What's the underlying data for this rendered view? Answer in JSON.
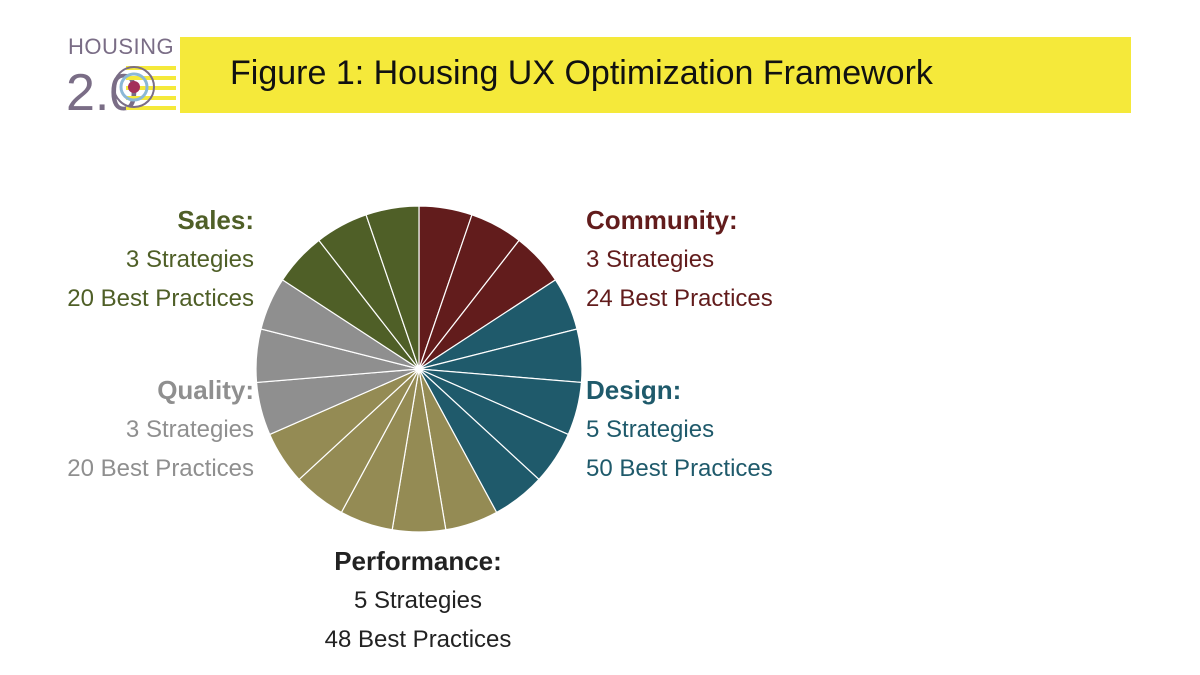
{
  "logo": {
    "word": "HOUSING",
    "digits": "2.0"
  },
  "title": "Figure 1: Housing UX Optimization Framework",
  "colors": {
    "community": "#621c1c",
    "design": "#1f5a6b",
    "performance": "#948b54",
    "quality": "#8f8f8f",
    "sales": "#4f5f27",
    "title_bar": "#f5e93a"
  },
  "chart_data": {
    "type": "pie",
    "start": "top, clockwise",
    "slice_borders": "white",
    "segments": [
      {
        "key": "community",
        "strategies": 3,
        "values": [
          1,
          1,
          1
        ]
      },
      {
        "key": "design",
        "strategies": 5,
        "values": [
          1,
          1,
          1,
          1,
          1
        ]
      },
      {
        "key": "performance",
        "strategies": 5,
        "values": [
          1,
          1,
          1,
          1,
          1
        ]
      },
      {
        "key": "quality",
        "strategies": 3,
        "values": [
          1,
          1,
          1
        ]
      },
      {
        "key": "sales",
        "strategies": 3,
        "values": [
          1,
          1,
          1
        ]
      }
    ],
    "labels": {
      "community": {
        "name": "Community:",
        "strategies": "3 Strategies",
        "practices": "24 Best Practices"
      },
      "design": {
        "name": "Design:",
        "strategies": "5 Strategies",
        "practices": "50 Best Practices"
      },
      "performance": {
        "name": "Performance:",
        "strategies": "5 Strategies",
        "practices": "48 Best Practices"
      },
      "quality": {
        "name": "Quality:",
        "strategies": "3 Strategies",
        "practices": "20 Best Practices"
      },
      "sales": {
        "name": "Sales:",
        "strategies": "3 Strategies",
        "practices": "20 Best Practices"
      }
    }
  }
}
